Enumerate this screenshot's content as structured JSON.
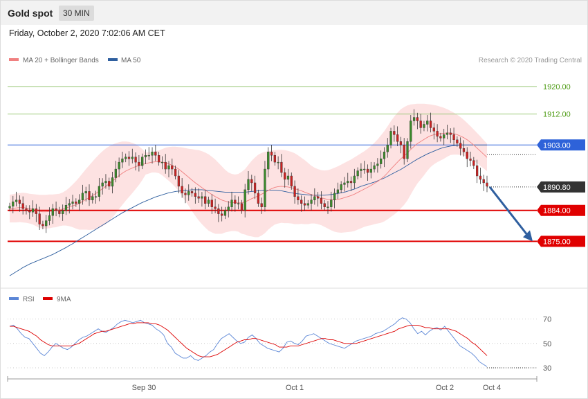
{
  "header": {
    "instrument": "Gold spot",
    "timeframe": "30 MIN",
    "datetime": "Friday, October 2, 2020 7:02:06 AM CET"
  },
  "legend": {
    "ma20_label": "MA 20 + Bollinger Bands",
    "ma50_label": "MA 50",
    "rsi_label": "RSI",
    "rsi_ma_label": "9MA",
    "credit": "Research © 2020 Trading Central"
  },
  "colors": {
    "ma20": "#f08080",
    "ma50": "#2f5f9f",
    "bands_fill": "#fde0e0",
    "candle_up": "#3a8a2a",
    "candle_down": "#cc2222",
    "resistance": "#2e62d9",
    "support": "#e00000",
    "target_green": "#9bc97a",
    "last_price": "#333333",
    "arrow": "#2f5f9f",
    "rsi": "#5b86d6",
    "rsi_ma": "#dd0000"
  },
  "chart_data": [
    {
      "type": "candlestick",
      "title": "Gold spot",
      "timeframe": "30 MIN",
      "x_tick_labels": [
        "Sep 30",
        "Oct 1",
        "Oct 2",
        "Oct 4"
      ],
      "ylim": [
        1862,
        1926
      ],
      "levels": [
        {
          "value": 1920.0,
          "label": "1920.00",
          "kind": "target"
        },
        {
          "value": 1912.0,
          "label": "1912.00",
          "kind": "target"
        },
        {
          "value": 1903.0,
          "label": "1903.00",
          "kind": "resistance"
        },
        {
          "value": 1890.8,
          "label": "1890.80",
          "kind": "last"
        },
        {
          "value": 1884.0,
          "label": "1884.00",
          "kind": "support"
        },
        {
          "value": 1875.0,
          "label": "1875.00",
          "kind": "support"
        }
      ],
      "close_series": [
        1885.2,
        1886.5,
        1887.0,
        1886.0,
        1884.5,
        1883.8,
        1883.5,
        1884.5,
        1883.0,
        1880.0,
        1879.5,
        1881.0,
        1882.5,
        1884.5,
        1884.0,
        1883.0,
        1884.0,
        1885.5,
        1886.0,
        1886.5,
        1886.0,
        1887.0,
        1889.0,
        1889.5,
        1887.0,
        1888.0,
        1888.0,
        1891.0,
        1892.0,
        1892.5,
        1891.0,
        1893.5,
        1896.0,
        1898.0,
        1899.0,
        1899.5,
        1899.0,
        1899.5,
        1898.0,
        1897.0,
        1899.5,
        1900.0,
        1900.0,
        1901.0,
        1900.0,
        1898.0,
        1898.0,
        1896.0,
        1897.0,
        1896.0,
        1894.0,
        1891.0,
        1889.0,
        1888.5,
        1889.5,
        1889.0,
        1888.0,
        1887.5,
        1888.0,
        1886.0,
        1887.0,
        1885.0,
        1884.5,
        1883.0,
        1882.5,
        1884.0,
        1885.0,
        1887.0,
        1886.0,
        1886.0,
        1884.0,
        1890.0,
        1893.0,
        1892.0,
        1889.0,
        1886.0,
        1885.0,
        1896.0,
        1901.0,
        1900.0,
        1898.0,
        1898.0,
        1895.0,
        1893.0,
        1894.0,
        1891.0,
        1888.0,
        1887.0,
        1886.0,
        1885.5,
        1886.0,
        1887.0,
        1888.0,
        1887.5,
        1886.0,
        1885.0,
        1885.0,
        1887.0,
        1889.0,
        1890.0,
        1891.5,
        1892.0,
        1892.5,
        1892.0,
        1894.0,
        1895.5,
        1896.0,
        1896.0,
        1895.0,
        1896.0,
        1897.0,
        1897.5,
        1899.0,
        1901.0,
        1903.0,
        1907.0,
        1906.0,
        1904.0,
        1903.0,
        1899.0,
        1904.0,
        1910.0,
        1911.0,
        1910.0,
        1908.0,
        1909.0,
        1910.0,
        1908.0,
        1907.0,
        1905.5,
        1905.0,
        1906.0,
        1906.5,
        1906.0,
        1904.5,
        1903.5,
        1902.0,
        1901.0,
        1899.0,
        1898.5,
        1897.0,
        1894.0,
        1893.0,
        1892.0,
        1891.0
      ],
      "ma20_series": [
        1884.5,
        1884.6,
        1884.7,
        1884.8,
        1884.8,
        1884.7,
        1884.5,
        1884.3,
        1884.0,
        1883.7,
        1883.6,
        1883.6,
        1883.7,
        1883.8,
        1883.9,
        1884.1,
        1884.4,
        1884.7,
        1885.0,
        1885.3,
        1885.6,
        1886.0,
        1886.6,
        1887.2,
        1887.7,
        1888.3,
        1888.9,
        1889.6,
        1890.3,
        1891.0,
        1891.7,
        1892.5,
        1893.3,
        1894.1,
        1894.8,
        1895.4,
        1895.9,
        1896.3,
        1896.7,
        1897.0,
        1897.3,
        1897.6,
        1897.8,
        1898.0,
        1898.1,
        1898.1,
        1898.0,
        1897.8,
        1897.5,
        1897.1,
        1896.6,
        1896.0,
        1895.2,
        1894.4,
        1893.6,
        1892.8,
        1892.0,
        1891.3,
        1890.6,
        1889.9,
        1889.2,
        1888.6,
        1888.0,
        1887.5,
        1887.0,
        1886.7,
        1886.4,
        1886.3,
        1886.2,
        1886.2,
        1886.2,
        1886.5,
        1886.9,
        1887.4,
        1887.8,
        1888.2,
        1888.7,
        1889.2,
        1889.8,
        1890.3,
        1890.7,
        1890.9,
        1891.0,
        1890.9,
        1890.8,
        1890.6,
        1890.3,
        1890.0,
        1889.7,
        1889.3,
        1888.9,
        1888.6,
        1888.3,
        1888.0,
        1887.7,
        1887.4,
        1887.2,
        1887.1,
        1887.1,
        1887.2,
        1887.4,
        1887.7,
        1888.0,
        1888.3,
        1888.7,
        1889.2,
        1889.7,
        1890.2,
        1890.7,
        1891.2,
        1891.8,
        1892.4,
        1893.1,
        1893.9,
        1894.9,
        1896.0,
        1897.0,
        1898.0,
        1899.0,
        1899.8,
        1900.7,
        1901.7,
        1902.6,
        1903.4,
        1904.0,
        1904.6,
        1905.2,
        1905.7,
        1906.0,
        1906.2,
        1906.3,
        1906.4,
        1906.5,
        1906.5,
        1906.3,
        1906.0,
        1905.6,
        1905.1,
        1904.5,
        1903.8,
        1903.0,
        1902.1,
        1901.2,
        1900.3,
        1899.4
      ],
      "bb_upper_series": [
        1888.5,
        1888.7,
        1888.9,
        1889.0,
        1889.1,
        1889.0,
        1888.8,
        1888.7,
        1888.6,
        1888.5,
        1888.5,
        1888.5,
        1888.6,
        1888.6,
        1888.7,
        1888.8,
        1889.2,
        1889.8,
        1890.6,
        1891.5,
        1892.5,
        1893.6,
        1894.8,
        1896.0,
        1897.1,
        1898.2,
        1899.3,
        1900.3,
        1901.2,
        1902.0,
        1902.6,
        1903.1,
        1903.5,
        1903.8,
        1904.0,
        1904.0,
        1903.9,
        1903.6,
        1903.2,
        1902.6,
        1901.8,
        1900.8,
        1900.9,
        1901.0,
        1901.2,
        1901.4,
        1901.8,
        1902.2,
        1902.4,
        1902.5,
        1902.5,
        1902.4,
        1902.3,
        1902.1,
        1901.9,
        1901.8,
        1901.6,
        1901.5,
        1901.2,
        1900.8,
        1900.3,
        1899.6,
        1898.8,
        1897.8,
        1896.8,
        1895.8,
        1895.0,
        1894.6,
        1894.4,
        1894.6,
        1895.2,
        1896.0,
        1897.2,
        1898.4,
        1899.4,
        1900.2,
        1900.7,
        1901.0,
        1901.2,
        1901.4,
        1901.5,
        1901.6,
        1901.6,
        1901.5,
        1901.3,
        1901.0,
        1900.6,
        1900.0,
        1899.3,
        1898.6,
        1897.8,
        1897.0,
        1896.4,
        1896.0,
        1895.7,
        1895.6,
        1895.7,
        1896.0,
        1896.4,
        1896.8,
        1897.3,
        1897.8,
        1898.3,
        1898.8,
        1899.4,
        1900.0,
        1900.6,
        1901.2,
        1901.9,
        1902.7,
        1903.6,
        1904.6,
        1905.8,
        1907.0,
        1908.4,
        1909.9,
        1911.2,
        1912.4,
        1913.4,
        1914.0,
        1914.5,
        1914.8,
        1914.9,
        1915.0,
        1915.0,
        1915.0,
        1914.9,
        1914.8,
        1914.6,
        1914.4,
        1914.1,
        1913.8,
        1913.4,
        1912.9,
        1912.4,
        1911.8,
        1911.1,
        1910.3,
        1909.4,
        1908.5,
        1907.5,
        1906.5,
        1905.5,
        1904.4,
        1903.4
      ],
      "bb_lower_series": [
        1880.5,
        1880.5,
        1880.5,
        1880.6,
        1880.5,
        1880.4,
        1880.2,
        1879.9,
        1879.4,
        1878.9,
        1878.7,
        1878.7,
        1878.8,
        1879.0,
        1879.1,
        1879.4,
        1879.6,
        1879.6,
        1879.4,
        1879.1,
        1878.7,
        1878.4,
        1878.4,
        1878.4,
        1878.3,
        1878.4,
        1878.5,
        1878.9,
        1879.4,
        1880.0,
        1880.8,
        1881.9,
        1883.1,
        1884.4,
        1885.6,
        1886.8,
        1887.9,
        1889.0,
        1890.2,
        1891.4,
        1892.8,
        1894.4,
        1894.7,
        1895.0,
        1895.0,
        1894.8,
        1894.2,
        1893.4,
        1892.6,
        1891.7,
        1890.7,
        1889.6,
        1888.1,
        1886.7,
        1885.3,
        1883.8,
        1882.4,
        1881.1,
        1880.0,
        1879.0,
        1878.1,
        1877.6,
        1877.2,
        1877.2,
        1877.2,
        1877.6,
        1877.8,
        1878.0,
        1878.0,
        1877.8,
        1877.2,
        1877.0,
        1876.6,
        1876.4,
        1876.2,
        1876.2,
        1876.7,
        1877.4,
        1878.4,
        1879.2,
        1879.9,
        1880.2,
        1880.4,
        1880.3,
        1880.3,
        1880.2,
        1880.0,
        1880.0,
        1880.1,
        1880.0,
        1880.0,
        1880.2,
        1880.2,
        1880.0,
        1879.7,
        1879.2,
        1878.7,
        1878.2,
        1877.8,
        1877.6,
        1877.5,
        1877.6,
        1877.7,
        1877.8,
        1878.0,
        1878.4,
        1878.8,
        1879.2,
        1879.5,
        1879.7,
        1880.0,
        1880.2,
        1880.4,
        1880.8,
        1881.4,
        1882.1,
        1882.8,
        1883.6,
        1884.6,
        1885.6,
        1886.9,
        1888.6,
        1890.3,
        1891.8,
        1893.0,
        1894.2,
        1895.5,
        1896.6,
        1897.4,
        1898.0,
        1898.5,
        1899.0,
        1899.6,
        1900.1,
        1900.2,
        1900.2,
        1900.1,
        1899.9,
        1899.6,
        1899.1,
        1898.5,
        1897.7,
        1896.9,
        1896.2,
        1895.4
      ],
      "ma50_series": [
        1865.0,
        1865.6,
        1866.2,
        1866.8,
        1867.4,
        1867.9,
        1868.4,
        1868.8,
        1869.2,
        1869.6,
        1870.0,
        1870.4,
        1870.8,
        1871.2,
        1871.7,
        1872.2,
        1872.7,
        1873.2,
        1873.8,
        1874.3,
        1874.9,
        1875.5,
        1876.1,
        1876.7,
        1877.3,
        1877.9,
        1878.5,
        1879.1,
        1879.7,
        1880.3,
        1880.9,
        1881.5,
        1882.1,
        1882.7,
        1883.3,
        1883.8,
        1884.3,
        1884.8,
        1885.3,
        1885.8,
        1886.3,
        1886.7,
        1887.1,
        1887.5,
        1887.9,
        1888.2,
        1888.5,
        1888.8,
        1889.1,
        1889.3,
        1889.5,
        1889.6,
        1889.7,
        1889.8,
        1889.9,
        1890.0,
        1890.0,
        1890.0,
        1890.0,
        1889.9,
        1889.8,
        1889.7,
        1889.6,
        1889.5,
        1889.4,
        1889.3,
        1889.3,
        1889.3,
        1889.3,
        1889.3,
        1889.3,
        1889.3,
        1889.4,
        1889.5,
        1889.6,
        1889.7,
        1889.8,
        1889.9,
        1889.9,
        1889.9,
        1889.9,
        1889.8,
        1889.7,
        1889.5,
        1889.3,
        1889.1,
        1888.9,
        1888.8,
        1888.7,
        1888.6,
        1888.5,
        1888.4,
        1888.4,
        1888.4,
        1888.4,
        1888.4,
        1888.5,
        1888.6,
        1888.7,
        1888.9,
        1889.1,
        1889.3,
        1889.6,
        1889.9,
        1890.2,
        1890.6,
        1891.0,
        1891.3,
        1891.6,
        1891.9,
        1892.2,
        1892.6,
        1893.0,
        1893.4,
        1893.9,
        1894.4,
        1894.9,
        1895.4,
        1895.9,
        1896.5,
        1897.1,
        1897.7,
        1898.3,
        1898.9,
        1899.4,
        1899.9,
        1900.4,
        1900.8,
        1901.2,
        1901.6,
        1902.0,
        1902.3,
        1902.5,
        1902.7,
        1902.8,
        1902.9,
        1903.0,
        1903.0,
        1903.0,
        1903.0,
        1903.0,
        1903.0,
        1903.0,
        1903.0,
        1903.0
      ]
    },
    {
      "type": "line",
      "title": "RSI",
      "series": [
        {
          "name": "RSI",
          "values": [
            64,
            65,
            62,
            58,
            55,
            54,
            50,
            46,
            42,
            40,
            43,
            47,
            50,
            48,
            46,
            45,
            47,
            50,
            53,
            55,
            56,
            58,
            60,
            62,
            60,
            59,
            61,
            63,
            66,
            68,
            69,
            68,
            67,
            68,
            69,
            67,
            66,
            65,
            62,
            60,
            57,
            50,
            47,
            42,
            40,
            38,
            38,
            40,
            37,
            36,
            38,
            40,
            43,
            45,
            50,
            54,
            56,
            58,
            55,
            52,
            50,
            51,
            55,
            57,
            54,
            50,
            48,
            46,
            45,
            44,
            43,
            46,
            51,
            52,
            50,
            49,
            52,
            56,
            57,
            58,
            56,
            54,
            52,
            50,
            49,
            48,
            47,
            46,
            48,
            50,
            52,
            53,
            54,
            55,
            56,
            58,
            59,
            60,
            62,
            64,
            66,
            69,
            71,
            70,
            67,
            62,
            58,
            60,
            57,
            60,
            62,
            63,
            61,
            64,
            60,
            56,
            52,
            48,
            46,
            44,
            42,
            39,
            35,
            33,
            31
          ]
        },
        {
          "name": "9MA",
          "values": [
            64,
            64,
            63,
            62,
            61,
            60,
            58,
            56,
            53,
            51,
            49,
            48,
            48,
            48,
            48,
            48,
            48,
            49,
            50,
            52,
            54,
            56,
            58,
            59,
            60,
            60,
            61,
            62,
            63,
            64,
            65,
            66,
            66,
            67,
            67,
            67,
            67,
            66,
            66,
            65,
            63,
            61,
            58,
            55,
            52,
            49,
            46,
            44,
            42,
            40,
            39,
            39,
            39,
            40,
            41,
            43,
            45,
            47,
            49,
            51,
            52,
            53,
            53,
            54,
            54,
            53,
            52,
            51,
            50,
            49,
            47,
            47,
            47,
            48,
            48,
            48,
            49,
            50,
            51,
            52,
            53,
            54,
            54,
            53,
            53,
            52,
            51,
            50,
            50,
            50,
            50,
            51,
            52,
            53,
            54,
            55,
            56,
            57,
            58,
            59,
            60,
            62,
            63,
            64,
            65,
            65,
            65,
            64,
            63,
            63,
            62,
            62,
            62,
            62,
            62,
            61,
            60,
            58,
            56,
            54,
            51,
            49,
            46,
            43,
            40
          ]
        }
      ],
      "x_tick_labels": [
        "Sep 30",
        "Oct 1",
        "Oct 2",
        "Oct 4"
      ],
      "y_ticks": [
        30,
        50,
        70
      ],
      "ylim": [
        26,
        80
      ]
    }
  ]
}
